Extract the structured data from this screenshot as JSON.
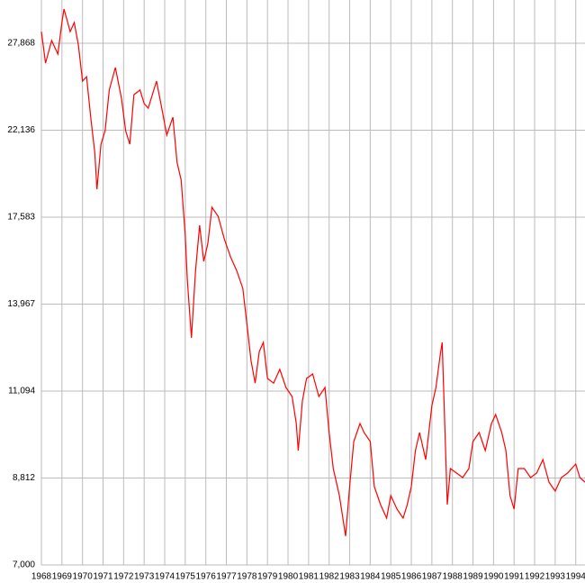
{
  "chart_data": {
    "type": "line",
    "log_scale_y": true,
    "grid": true,
    "series": [
      {
        "color": "#ff0000",
        "x": [
          1968.0,
          1968.2,
          1968.5,
          1968.8,
          1969.0,
          1969.1,
          1969.4,
          1969.6,
          1969.8,
          1970.0,
          1970.2,
          1970.4,
          1970.6,
          1970.7,
          1970.9,
          1971.1,
          1971.3,
          1971.6,
          1971.9,
          1972.1,
          1972.3,
          1972.5,
          1972.8,
          1973.0,
          1973.2,
          1973.6,
          1973.9,
          1974.1,
          1974.4,
          1974.6,
          1974.8,
          1975.0,
          1975.1,
          1975.3,
          1975.5,
          1975.7,
          1975.9,
          1976.1,
          1976.3,
          1976.6,
          1976.9,
          1977.2,
          1977.5,
          1977.8,
          1978.0,
          1978.2,
          1978.4,
          1978.6,
          1978.8,
          1979.0,
          1979.3,
          1979.6,
          1979.9,
          1980.2,
          1980.4,
          1980.5,
          1980.7,
          1980.9,
          1981.2,
          1981.5,
          1981.8,
          1982.0,
          1982.2,
          1982.5,
          1982.8,
          1983.0,
          1983.2,
          1983.5,
          1983.7,
          1984.0,
          1984.2,
          1984.5,
          1984.8,
          1985.0,
          1985.3,
          1985.6,
          1985.8,
          1986.0,
          1986.2,
          1986.4,
          1986.7,
          1987.0,
          1987.2,
          1987.4,
          1987.5,
          1987.75,
          1987.9,
          1988.2,
          1988.5,
          1988.8,
          1989.0,
          1989.3,
          1989.6,
          1989.9,
          1990.1,
          1990.4,
          1990.6,
          1990.8,
          1991.0,
          1991.2,
          1991.5,
          1991.8,
          1992.1,
          1992.4,
          1992.7,
          1993.0,
          1993.3,
          1993.6,
          1994.0,
          1994.2,
          1994.45
        ],
        "values": [
          28742,
          26440,
          28070,
          27080,
          29440,
          30510,
          28742,
          29440,
          27735,
          25210,
          25510,
          22910,
          20830,
          18930,
          21330,
          22110,
          24620,
          26130,
          24040,
          22110,
          21330,
          24320,
          24620,
          23750,
          23470,
          25210,
          23190,
          21850,
          22910,
          20340,
          19390,
          16800,
          14915,
          12770,
          15270,
          17210,
          15640,
          16410,
          18050,
          17620,
          16600,
          15830,
          15270,
          14560,
          13240,
          12030,
          11330,
          12320,
          12620,
          11470,
          11330,
          11750,
          11200,
          10935,
          10180,
          9478,
          10810,
          11470,
          11610,
          10935,
          11200,
          9940,
          9036,
          8412,
          7555,
          8614,
          9706,
          10180,
          9940,
          9706,
          8614,
          8214,
          7925,
          8412,
          8116,
          7925,
          8214,
          8614,
          9478,
          9940,
          9253,
          10680,
          11200,
          12178,
          12620,
          8214,
          9036,
          8929,
          8822,
          9036,
          9706,
          9940,
          9478,
          10180,
          10428,
          9940,
          9478,
          8412,
          8116,
          9036,
          9036,
          8822,
          8929,
          9253,
          8717,
          8513,
          8822,
          8929,
          9144,
          8822,
          8717
        ]
      }
    ],
    "xlim": [
      1968,
      1994.45
    ],
    "xticks": [
      1968,
      1969,
      1970,
      1971,
      1972,
      1973,
      1974,
      1975,
      1976,
      1977,
      1978,
      1979,
      1980,
      1981,
      1982,
      1983,
      1984,
      1985,
      1986,
      1987,
      1988,
      1989,
      1990,
      1991,
      1992,
      1993,
      1994
    ],
    "ylim": [
      7000,
      31250
    ],
    "yticks": [
      {
        "value": 7000,
        "label": "7,000"
      },
      {
        "value": 8812,
        "label": "8,812"
      },
      {
        "value": 11094,
        "label": "11,094"
      },
      {
        "value": 13967,
        "label": "13,967"
      },
      {
        "value": 17583,
        "label": "17,583"
      },
      {
        "value": 22136,
        "label": "22,136"
      },
      {
        "value": 27868,
        "label": "27,868"
      }
    ]
  }
}
